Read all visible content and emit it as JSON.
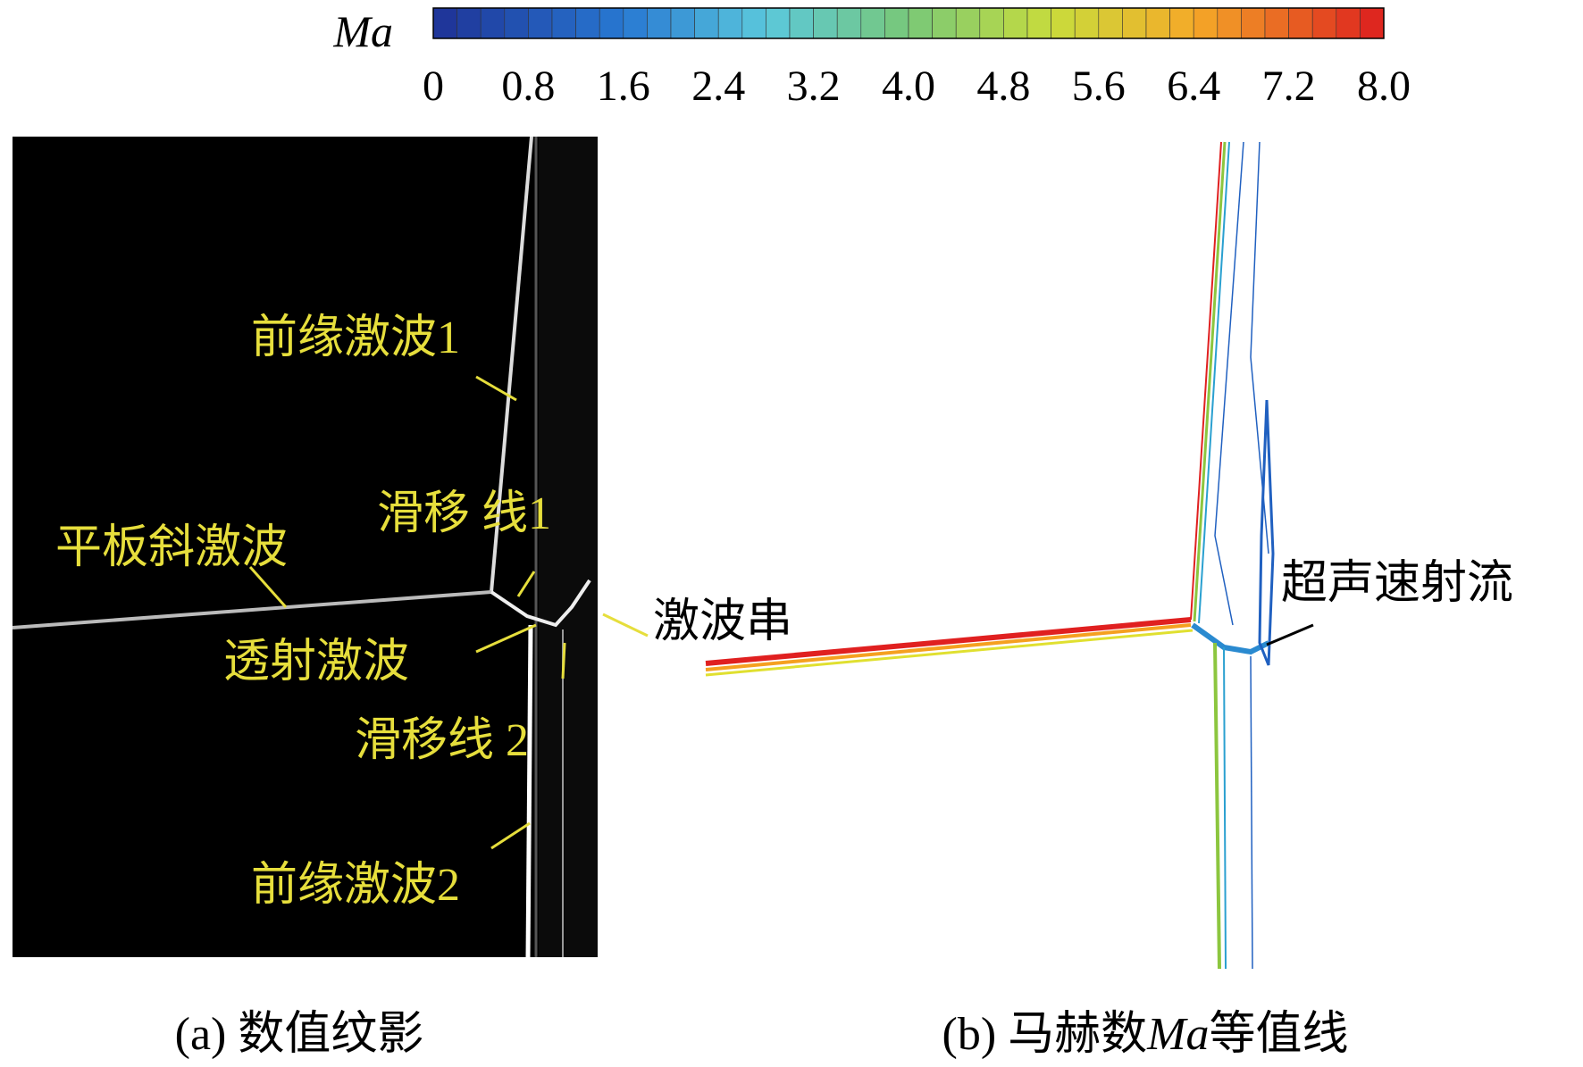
{
  "colorbar": {
    "label": "Ma",
    "ticks": [
      "0",
      "0.8",
      "1.6",
      "2.4",
      "3.2",
      "4.0",
      "4.8",
      "5.6",
      "6.4",
      "7.2",
      "8.0"
    ]
  },
  "panel_a": {
    "caption": "(a) 数值纹影",
    "labels": [
      "前缘激波1",
      "滑移 线1",
      "平板斜激波",
      "透射激波",
      "滑移线 2",
      "前缘激波2",
      "激波串"
    ]
  },
  "panel_b": {
    "caption": [
      "(b) 马赫数",
      "Ma",
      "等值线"
    ],
    "labels": [
      "超声速射流"
    ]
  }
}
